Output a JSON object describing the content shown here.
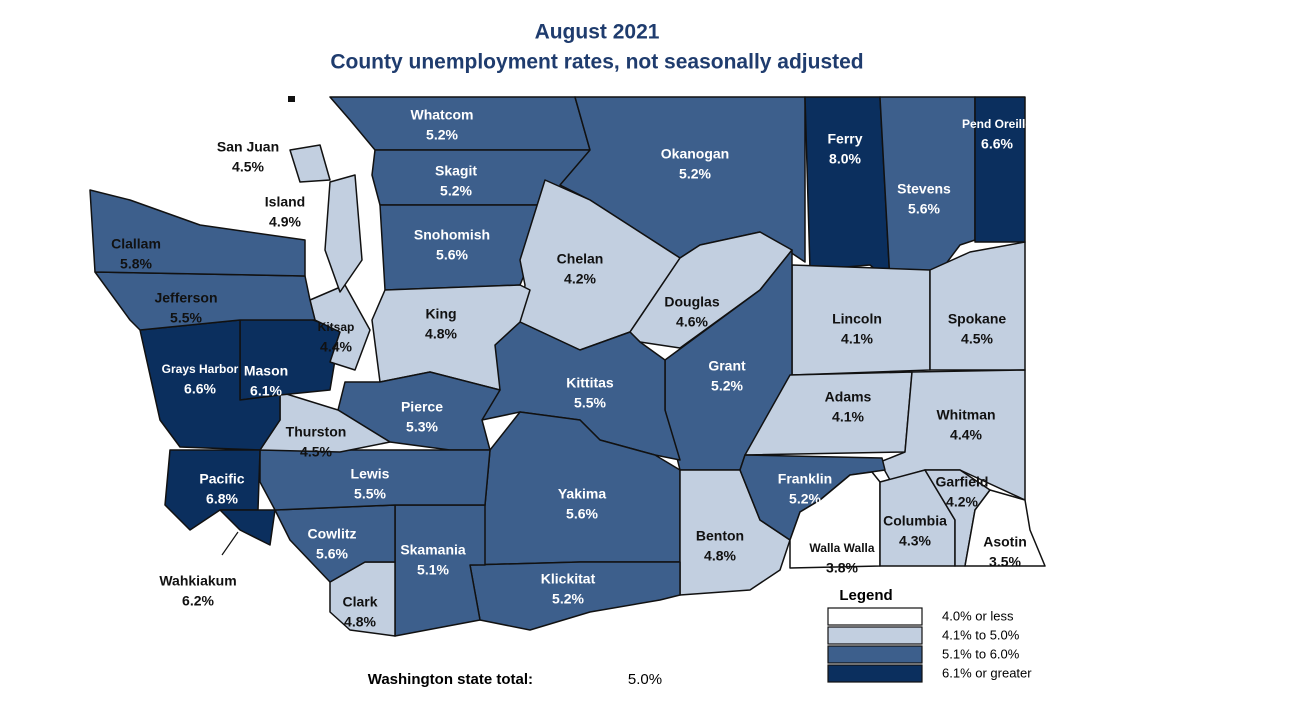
{
  "title": "August 2021",
  "subtitle": "County unemployment rates, not seasonally adjusted",
  "counties": [
    {
      "name": "Whatcom",
      "rate": "5.2%",
      "color": "#3d5f8c"
    },
    {
      "name": "Skagit",
      "rate": "5.2%",
      "color": "#3d5f8c"
    },
    {
      "name": "Snohomish",
      "rate": "5.6%",
      "color": "#3d5f8c"
    },
    {
      "name": "Okanogan",
      "rate": "5.2%",
      "color": "#3d5f8c"
    },
    {
      "name": "Ferry",
      "rate": "8.0%",
      "color": "#0b2f5e"
    },
    {
      "name": "Stevens",
      "rate": "5.6%",
      "color": "#3d5f8c"
    },
    {
      "name": "Pend Oreille",
      "rate": "6.6%",
      "color": "#0b2f5e"
    },
    {
      "name": "Chelan",
      "rate": "4.2%",
      "color": "#c2cfe0"
    },
    {
      "name": "Douglas",
      "rate": "4.6%",
      "color": "#c2cfe0"
    },
    {
      "name": "Lincoln",
      "rate": "4.1%",
      "color": "#c2cfe0"
    },
    {
      "name": "Spokane",
      "rate": "4.5%",
      "color": "#c2cfe0"
    },
    {
      "name": "Grant",
      "rate": "5.2%",
      "color": "#3d5f8c"
    },
    {
      "name": "Adams",
      "rate": "4.1%",
      "color": "#c2cfe0"
    },
    {
      "name": "Whitman",
      "rate": "4.4%",
      "color": "#c2cfe0"
    },
    {
      "name": "Kittitas",
      "rate": "5.5%",
      "color": "#3d5f8c"
    },
    {
      "name": "King",
      "rate": "4.8%",
      "color": "#c2cfe0"
    },
    {
      "name": "Pierce",
      "rate": "5.3%",
      "color": "#3d5f8c"
    },
    {
      "name": "Yakima",
      "rate": "5.6%",
      "color": "#3d5f8c"
    },
    {
      "name": "Benton",
      "rate": "4.8%",
      "color": "#c2cfe0"
    },
    {
      "name": "Franklin",
      "rate": "5.2%",
      "color": "#3d5f8c"
    },
    {
      "name": "Walla Walla",
      "rate": "3.8%",
      "color": "#ffffff"
    },
    {
      "name": "Columbia",
      "rate": "4.3%",
      "color": "#c2cfe0"
    },
    {
      "name": "Garfield",
      "rate": "4.2%",
      "color": "#c2cfe0"
    },
    {
      "name": "Asotin",
      "rate": "3.5%",
      "color": "#ffffff"
    },
    {
      "name": "Klickitat",
      "rate": "5.2%",
      "color": "#3d5f8c"
    },
    {
      "name": "Skamania",
      "rate": "5.1%",
      "color": "#3d5f8c"
    },
    {
      "name": "Clark",
      "rate": "4.8%",
      "color": "#c2cfe0"
    },
    {
      "name": "Cowlitz",
      "rate": "5.6%",
      "color": "#3d5f8c"
    },
    {
      "name": "Lewis",
      "rate": "5.5%",
      "color": "#3d5f8c"
    },
    {
      "name": "Thurston",
      "rate": "4.5%",
      "color": "#c2cfe0"
    },
    {
      "name": "Mason",
      "rate": "6.1%",
      "color": "#0b2f5e"
    },
    {
      "name": "Kitsap",
      "rate": "4.4%",
      "color": "#c2cfe0"
    },
    {
      "name": "Grays Harbor",
      "rate": "6.6%",
      "color": "#0b2f5e"
    },
    {
      "name": "Pacific",
      "rate": "6.8%",
      "color": "#0b2f5e"
    },
    {
      "name": "Wahkiakum",
      "rate": "6.2%",
      "color": "#0b2f5e"
    },
    {
      "name": "Jefferson",
      "rate": "5.5%",
      "color": "#3d5f8c"
    },
    {
      "name": "Clallam",
      "rate": "5.8%",
      "color": "#3d5f8c"
    },
    {
      "name": "San Juan",
      "rate": "4.5%",
      "color": "#c2cfe0"
    },
    {
      "name": "Island",
      "rate": "4.9%",
      "color": "#c2cfe0"
    }
  ],
  "legend": {
    "title": "Legend",
    "items": [
      {
        "label": "4.0% or less",
        "color": "#ffffff"
      },
      {
        "label": "4.1% to 5.0%",
        "color": "#c2cfe0"
      },
      {
        "label": "5.1% to 6.0%",
        "color": "#3d5f8c"
      },
      {
        "label": "6.1% or greater",
        "color": "#0b2f5e"
      }
    ]
  },
  "state_total": {
    "label": "Washington state total:",
    "value": "5.0%"
  }
}
